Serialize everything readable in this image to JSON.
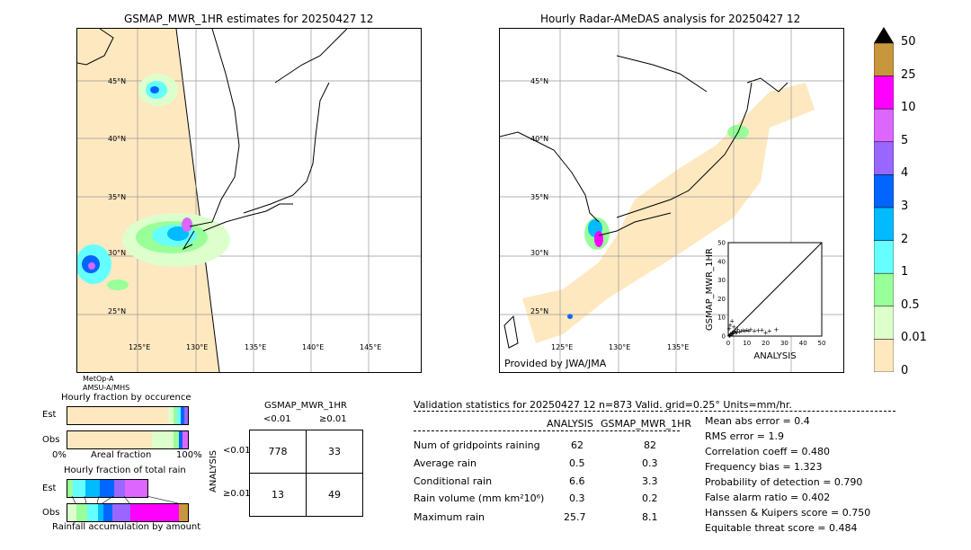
{
  "left_map": {
    "title": "GSMAP_MWR_1HR estimates for 20250427 12",
    "lat_labels": [
      "45°N",
      "40°N",
      "35°N",
      "30°N",
      "25°N"
    ],
    "lon_labels": [
      "125°E",
      "130°E",
      "135°E",
      "140°E",
      "145°E"
    ],
    "sensors": [
      "MetOp-A",
      "AMSU-A/MHS"
    ]
  },
  "right_map": {
    "title": "Hourly Radar-AMeDAS analysis for 20250427 12",
    "lat_labels": [
      "45°N",
      "40°N",
      "35°N",
      "30°N",
      "25°N"
    ],
    "lon_labels": [
      "125°E",
      "130°E",
      "135°E"
    ],
    "credit": "Provided by JWA/JMA"
  },
  "colorbar": {
    "labels": [
      "50",
      "25",
      "10",
      "5",
      "4",
      "3",
      "2",
      "1",
      "0.5",
      "0.01",
      "0"
    ],
    "colors": [
      "#c8963c",
      "#ff00ff",
      "#dd66ff",
      "#9966ff",
      "#0066ff",
      "#00bbff",
      "#66ffff",
      "#99ff99",
      "#ddffcc",
      "#ffe8c0"
    ]
  },
  "chart_data": [
    {
      "type": "scatter",
      "title": "",
      "xlabel": "ANALYSIS",
      "ylabel": "GSMAP_MWR_1HR",
      "xlim": [
        0,
        50
      ],
      "ylim": [
        0,
        50
      ],
      "xticks": [
        "0",
        "10",
        "20",
        "30",
        "40",
        "50"
      ],
      "yticks": [
        "0",
        "10",
        "20",
        "30",
        "40",
        "50"
      ],
      "points": [
        [
          0.5,
          0.3
        ],
        [
          1,
          0.5
        ],
        [
          1.5,
          1
        ],
        [
          2,
          2
        ],
        [
          2.5,
          1.5
        ],
        [
          3,
          2.5
        ],
        [
          3.5,
          3
        ],
        [
          4,
          2
        ],
        [
          5,
          3.5
        ],
        [
          6,
          2.5
        ],
        [
          7,
          3
        ],
        [
          8,
          3.2
        ],
        [
          9,
          2.8
        ],
        [
          10,
          3.3
        ],
        [
          11,
          3
        ],
        [
          12,
          3.5
        ],
        [
          14,
          3
        ],
        [
          16,
          3.2
        ],
        [
          18,
          3.4
        ],
        [
          20,
          2
        ],
        [
          22,
          3
        ],
        [
          25.7,
          3.5
        ],
        [
          1,
          6
        ],
        [
          2,
          8.1
        ],
        [
          0.5,
          4
        ],
        [
          3,
          5
        ],
        [
          1.2,
          1.1
        ],
        [
          0.8,
          0.6
        ],
        [
          2.2,
          1.3
        ],
        [
          4.5,
          2.2
        ]
      ]
    },
    {
      "type": "bar",
      "title": "Hourly fraction by occurence",
      "categories": [
        "Est",
        "Obs"
      ],
      "xlabel": "Areal fraction",
      "xticks": [
        "0%",
        "100%"
      ]
    },
    {
      "type": "bar",
      "title": "Hourly fraction of total rain",
      "categories": [
        "Est",
        "Obs"
      ],
      "xlabel": "Rainfall accumulation by amount"
    }
  ],
  "contingency": {
    "title": "GSMAP_MWR_1HR",
    "col_headers": [
      "<0.01",
      "≥0.01"
    ],
    "row_axis": "ANALYSIS",
    "row_headers": [
      "<0.01",
      "≥0.01"
    ],
    "cells": [
      [
        "778",
        "33"
      ],
      [
        "13",
        "49"
      ]
    ]
  },
  "validation": {
    "header": "Validation statistics for 20250427 12  n=873 Valid. grid=0.25° Units=mm/hr.",
    "col1": "ANALYSIS",
    "col2": "GSMAP_MWR_1HR",
    "rows": [
      {
        "label": "Num of gridpoints raining",
        "a": "62",
        "b": "82"
      },
      {
        "label": "Average rain",
        "a": "0.5",
        "b": "0.3"
      },
      {
        "label": "Conditional rain",
        "a": "6.6",
        "b": "3.3"
      },
      {
        "label": "Rain volume (mm km²10⁶)",
        "a": "0.3",
        "b": "0.2"
      },
      {
        "label": "Maximum rain",
        "a": "25.7",
        "b": "8.1"
      }
    ],
    "scores": [
      "Mean abs error =    0.4",
      "RMS error =    1.9",
      "Correlation coeff =  0.480",
      "Frequency bias =  1.323",
      "Probability of detection =  0.790",
      "False alarm ratio =  0.402",
      "Hanssen & Kuipers score =  0.750",
      "Equitable threat score =  0.484"
    ]
  }
}
